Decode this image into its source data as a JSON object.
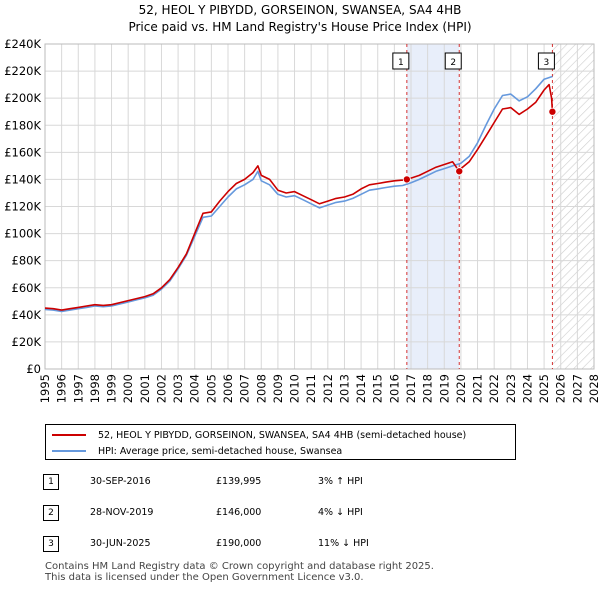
{
  "title": "52, HEOL Y PIBYDD, GORSEINON, SWANSEA, SA4 4HB",
  "subtitle": "Price paid vs. HM Land Registry's House Price Index (HPI)",
  "colors": {
    "red": "#cc0000",
    "blue": "#6699dd",
    "shade": "#e8eefa",
    "grid": "#d8d8d8"
  },
  "chart_data": {
    "type": "line",
    "title": "52, HEOL Y PIBYDD, GORSEINON, SWANSEA, SA4 4HB",
    "subtitle": "Price paid vs. HM Land Registry's House Price Index (HPI)",
    "xlabel": "",
    "ylabel": "",
    "xlim": [
      1995,
      2028
    ],
    "ylim": [
      0,
      240000
    ],
    "grid": true,
    "legend_position": "bottom",
    "x_ticks": [
      "1995",
      "1996",
      "1997",
      "1998",
      "1999",
      "2000",
      "2001",
      "2002",
      "2003",
      "2004",
      "2005",
      "2006",
      "2007",
      "2008",
      "2009",
      "2010",
      "2011",
      "2012",
      "2013",
      "2014",
      "2015",
      "2016",
      "2017",
      "2018",
      "2019",
      "2020",
      "2021",
      "2022",
      "2023",
      "2024",
      "2025",
      "2026",
      "2027",
      "2028"
    ],
    "y_ticks": [
      {
        "value": 0,
        "label": "£0"
      },
      {
        "value": 20000,
        "label": "£20K"
      },
      {
        "value": 40000,
        "label": "£40K"
      },
      {
        "value": 60000,
        "label": "£60K"
      },
      {
        "value": 80000,
        "label": "£80K"
      },
      {
        "value": 100000,
        "label": "£100K"
      },
      {
        "value": 120000,
        "label": "£120K"
      },
      {
        "value": 140000,
        "label": "£140K"
      },
      {
        "value": 160000,
        "label": "£160K"
      },
      {
        "value": 180000,
        "label": "£180K"
      },
      {
        "value": 200000,
        "label": "£200K"
      },
      {
        "value": 220000,
        "label": "£220K"
      },
      {
        "value": 240000,
        "label": "£240K"
      }
    ],
    "shaded_range": [
      2016.75,
      2019.9
    ],
    "forecast_start": 2025.5,
    "series": [
      {
        "name": "52, HEOL Y PIBYDD, GORSEINON, SWANSEA, SA4 4HB (semi-detached house)",
        "color": "#cc0000",
        "points": [
          [
            1995,
            45000
          ],
          [
            1995.5,
            44500
          ],
          [
            1996,
            43500
          ],
          [
            1996.5,
            44500
          ],
          [
            1997,
            45500
          ],
          [
            1997.5,
            46500
          ],
          [
            1998,
            47500
          ],
          [
            1998.5,
            47000
          ],
          [
            1999,
            47500
          ],
          [
            1999.5,
            49000
          ],
          [
            2000,
            50500
          ],
          [
            2000.5,
            52000
          ],
          [
            2001,
            53500
          ],
          [
            2001.5,
            55500
          ],
          [
            2002,
            60000
          ],
          [
            2002.5,
            66000
          ],
          [
            2003,
            75000
          ],
          [
            2003.5,
            85000
          ],
          [
            2004,
            100000
          ],
          [
            2004.5,
            115000
          ],
          [
            2005,
            116000
          ],
          [
            2005.5,
            124000
          ],
          [
            2006,
            131000
          ],
          [
            2006.5,
            137000
          ],
          [
            2007,
            140000
          ],
          [
            2007.5,
            145000
          ],
          [
            2007.8,
            150000
          ],
          [
            2008,
            143000
          ],
          [
            2008.5,
            140000
          ],
          [
            2009,
            132000
          ],
          [
            2009.5,
            130000
          ],
          [
            2010,
            131000
          ],
          [
            2010.5,
            128000
          ],
          [
            2011,
            125000
          ],
          [
            2011.5,
            122000
          ],
          [
            2012,
            124000
          ],
          [
            2012.5,
            126000
          ],
          [
            2013,
            127000
          ],
          [
            2013.5,
            129000
          ],
          [
            2014,
            133000
          ],
          [
            2014.5,
            136000
          ],
          [
            2015,
            137000
          ],
          [
            2015.5,
            138000
          ],
          [
            2016,
            139000
          ],
          [
            2016.5,
            139500
          ],
          [
            2016.75,
            139995
          ],
          [
            2017,
            141000
          ],
          [
            2017.5,
            143000
          ],
          [
            2018,
            146000
          ],
          [
            2018.5,
            149000
          ],
          [
            2019,
            151000
          ],
          [
            2019.5,
            153000
          ],
          [
            2019.9,
            146000
          ],
          [
            2020,
            148000
          ],
          [
            2020.5,
            153000
          ],
          [
            2021,
            162000
          ],
          [
            2021.5,
            172000
          ],
          [
            2022,
            182000
          ],
          [
            2022.5,
            192000
          ],
          [
            2023,
            193000
          ],
          [
            2023.5,
            188000
          ],
          [
            2024,
            192000
          ],
          [
            2024.5,
            197000
          ],
          [
            2025,
            206000
          ],
          [
            2025.3,
            210000
          ],
          [
            2025.45,
            200000
          ],
          [
            2025.5,
            190000
          ]
        ]
      },
      {
        "name": "HPI: Average price, semi-detached house, Swansea",
        "color": "#6699dd",
        "points": [
          [
            1995,
            44000
          ],
          [
            1995.5,
            43500
          ],
          [
            1996,
            42500
          ],
          [
            1996.5,
            43500
          ],
          [
            1997,
            44500
          ],
          [
            1997.5,
            45500
          ],
          [
            1998,
            46500
          ],
          [
            1998.5,
            46000
          ],
          [
            1999,
            46500
          ],
          [
            1999.5,
            48000
          ],
          [
            2000,
            49500
          ],
          [
            2000.5,
            51000
          ],
          [
            2001,
            52500
          ],
          [
            2001.5,
            54500
          ],
          [
            2002,
            59000
          ],
          [
            2002.5,
            65000
          ],
          [
            2003,
            74000
          ],
          [
            2003.5,
            84000
          ],
          [
            2004,
            98000
          ],
          [
            2004.5,
            112000
          ],
          [
            2005,
            113000
          ],
          [
            2005.5,
            120000
          ],
          [
            2006,
            127000
          ],
          [
            2006.5,
            133000
          ],
          [
            2007,
            136000
          ],
          [
            2007.5,
            140000
          ],
          [
            2007.8,
            146000
          ],
          [
            2008,
            139000
          ],
          [
            2008.5,
            136000
          ],
          [
            2009,
            129000
          ],
          [
            2009.5,
            127000
          ],
          [
            2010,
            128000
          ],
          [
            2010.5,
            125000
          ],
          [
            2011,
            122000
          ],
          [
            2011.5,
            119000
          ],
          [
            2012,
            121000
          ],
          [
            2012.5,
            123000
          ],
          [
            2013,
            124000
          ],
          [
            2013.5,
            126000
          ],
          [
            2014,
            129000
          ],
          [
            2014.5,
            132000
          ],
          [
            2015,
            133000
          ],
          [
            2015.5,
            134000
          ],
          [
            2016,
            135000
          ],
          [
            2016.5,
            135500
          ],
          [
            2017,
            137500
          ],
          [
            2017.5,
            140000
          ],
          [
            2018,
            143000
          ],
          [
            2018.5,
            146000
          ],
          [
            2019,
            148000
          ],
          [
            2019.5,
            150000
          ],
          [
            2020,
            152000
          ],
          [
            2020.5,
            157000
          ],
          [
            2021,
            167000
          ],
          [
            2021.5,
            180000
          ],
          [
            2022,
            192000
          ],
          [
            2022.5,
            202000
          ],
          [
            2023,
            203000
          ],
          [
            2023.5,
            198000
          ],
          [
            2024,
            201000
          ],
          [
            2024.5,
            207000
          ],
          [
            2025,
            214000
          ],
          [
            2025.5,
            216000
          ]
        ]
      }
    ],
    "sales": [
      {
        "label": "1",
        "x": 2016.75,
        "value": 139995
      },
      {
        "label": "2",
        "x": 2019.9,
        "value": 146000
      },
      {
        "label": "3",
        "x": 2025.5,
        "value": 190000
      }
    ]
  },
  "legend": {
    "property": "52, HEOL Y PIBYDD, GORSEINON, SWANSEA, SA4 4HB (semi-detached house)",
    "hpi": "HPI: Average price, semi-detached house, Swansea"
  },
  "sales_table": [
    {
      "num": "1",
      "date": "30-SEP-2016",
      "price": "£139,995",
      "hpi": "3% ↑ HPI"
    },
    {
      "num": "2",
      "date": "28-NOV-2019",
      "price": "£146,000",
      "hpi": "4% ↓ HPI"
    },
    {
      "num": "3",
      "date": "30-JUN-2025",
      "price": "£190,000",
      "hpi": "11% ↓ HPI"
    }
  ],
  "footer": {
    "line1": "Contains HM Land Registry data © Crown copyright and database right 2025.",
    "line2": "This data is licensed under the Open Government Licence v3.0."
  }
}
